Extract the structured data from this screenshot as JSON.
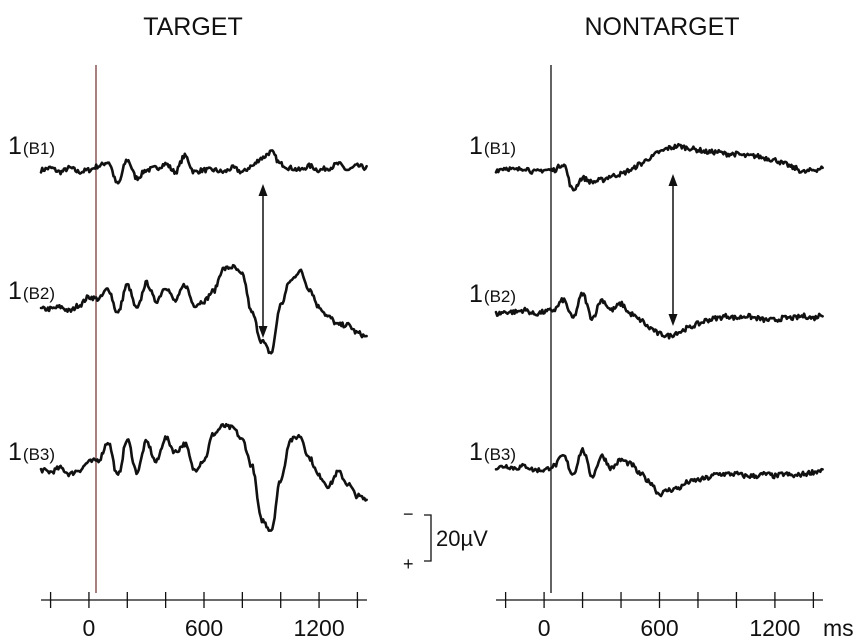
{
  "colors": {
    "trace": "#111111",
    "onset_target": "#7a3b3b",
    "onset_nontarget": "#111111"
  },
  "chart_data": [
    {
      "type": "line",
      "title": "TARGET",
      "x_unit": "",
      "xlim": [
        -250,
        1450
      ],
      "x_ticks": [
        -200,
        0,
        200,
        400,
        600,
        800,
        1000,
        1200,
        1400
      ],
      "x_tick_labels": [
        {
          "value": 0,
          "label": "0"
        },
        {
          "value": 600,
          "label": "600"
        },
        {
          "value": 1200,
          "label": "1200"
        }
      ],
      "series": [
        {
          "label_num": "1",
          "label_sub": "(B1)",
          "x": [
            -250,
            -200,
            -150,
            -100,
            -50,
            0,
            50,
            100,
            150,
            200,
            250,
            300,
            350,
            400,
            450,
            500,
            550,
            600,
            650,
            700,
            750,
            800,
            850,
            900,
            950,
            1000,
            1050,
            1100,
            1150,
            1200,
            1250,
            1300,
            1350,
            1400,
            1450
          ],
          "values": [
            0,
            1,
            -1,
            1,
            -1,
            0,
            2,
            4,
            -7,
            5,
            -4,
            0,
            1,
            3,
            -1,
            7,
            -1,
            0,
            0,
            -1,
            1,
            -1,
            2,
            6,
            9,
            3,
            1,
            0,
            2,
            0,
            1,
            3,
            0,
            2,
            1
          ]
        },
        {
          "label_num": "1",
          "label_sub": "(B2)",
          "x": [
            -250,
            -200,
            -150,
            -100,
            -50,
            0,
            50,
            100,
            150,
            200,
            250,
            300,
            350,
            400,
            450,
            500,
            550,
            600,
            650,
            700,
            750,
            800,
            850,
            900,
            950,
            1000,
            1050,
            1100,
            1150,
            1200,
            1250,
            1300,
            1350,
            1400,
            1450
          ],
          "values": [
            -2,
            -2,
            -1,
            -3,
            0,
            4,
            3,
            8,
            -4,
            10,
            -2,
            11,
            2,
            9,
            2,
            10,
            0,
            2,
            7,
            18,
            19,
            15,
            -4,
            -18,
            -24,
            0,
            12,
            17,
            8,
            -1,
            -6,
            -10,
            -10,
            -14,
            -16
          ]
        },
        {
          "label_num": "1",
          "label_sub": "(B3)",
          "x": [
            -250,
            -200,
            -150,
            -100,
            -50,
            0,
            50,
            100,
            150,
            200,
            250,
            300,
            350,
            400,
            450,
            500,
            550,
            600,
            650,
            700,
            750,
            800,
            850,
            900,
            950,
            1000,
            1050,
            1100,
            1150,
            1200,
            1250,
            1300,
            1350,
            1400,
            1450
          ],
          "values": [
            -1,
            -2,
            0,
            -3,
            -1,
            3,
            4,
            13,
            -4,
            14,
            -2,
            13,
            3,
            15,
            8,
            12,
            -1,
            4,
            17,
            21,
            20,
            14,
            1,
            -26,
            -31,
            -6,
            14,
            16,
            5,
            -4,
            -9,
            -2,
            -8,
            -14,
            -16
          ]
        }
      ]
    },
    {
      "type": "line",
      "title": "NONTARGET",
      "x_unit": "ms",
      "xlim": [
        -250,
        1450
      ],
      "x_ticks": [
        -200,
        0,
        200,
        400,
        600,
        800,
        1000,
        1200,
        1400
      ],
      "x_tick_labels": [
        {
          "value": 0,
          "label": "0"
        },
        {
          "value": 600,
          "label": "600"
        },
        {
          "value": 1200,
          "label": "1200"
        }
      ],
      "series": [
        {
          "label_num": "1",
          "label_sub": "(B1)",
          "x": [
            -250,
            -200,
            -150,
            -100,
            -50,
            0,
            50,
            100,
            150,
            200,
            250,
            300,
            350,
            400,
            450,
            500,
            550,
            600,
            650,
            700,
            750,
            800,
            850,
            900,
            950,
            1000,
            1050,
            1100,
            1150,
            1200,
            1250,
            1300,
            1350,
            1400,
            1450
          ],
          "values": [
            0,
            1,
            0,
            1,
            -1,
            0,
            0,
            3,
            -10,
            -4,
            -6,
            -5,
            -3,
            -2,
            0,
            3,
            6,
            9,
            11,
            12,
            11,
            10,
            9,
            9,
            8,
            8,
            7,
            7,
            6,
            5,
            3,
            1,
            -1,
            0,
            1
          ]
        },
        {
          "label_num": "1",
          "label_sub": "(B2)",
          "x": [
            -250,
            -200,
            -150,
            -100,
            -50,
            0,
            50,
            100,
            150,
            200,
            250,
            300,
            350,
            400,
            450,
            500,
            550,
            600,
            650,
            700,
            750,
            800,
            850,
            900,
            950,
            1000,
            1050,
            1100,
            1150,
            1200,
            1250,
            1300,
            1350,
            1400,
            1450
          ],
          "values": [
            -1,
            0,
            0,
            1,
            -1,
            0,
            1,
            6,
            -3,
            9,
            -3,
            6,
            1,
            4,
            -1,
            -4,
            -8,
            -11,
            -12,
            -10,
            -8,
            -6,
            -4,
            -3,
            -2,
            -3,
            -2,
            -3,
            -4,
            -4,
            -3,
            -3,
            -2,
            -3,
            -1
          ]
        },
        {
          "label_num": "1",
          "label_sub": "(B3)",
          "x": [
            -250,
            -200,
            -150,
            -100,
            -50,
            0,
            50,
            100,
            150,
            200,
            250,
            300,
            350,
            400,
            450,
            500,
            550,
            600,
            650,
            700,
            750,
            800,
            850,
            900,
            950,
            1000,
            1050,
            1100,
            1150,
            1200,
            1250,
            1300,
            1350,
            1400,
            1450
          ],
          "values": [
            1,
            2,
            1,
            2,
            0,
            0,
            2,
            7,
            -2,
            10,
            -3,
            7,
            1,
            5,
            3,
            -2,
            -6,
            -12,
            -10,
            -9,
            -6,
            -5,
            -4,
            -2,
            -2,
            -2,
            -3,
            -3,
            -2,
            -3,
            -2,
            -3,
            -2,
            -1,
            0
          ]
        }
      ]
    }
  ],
  "scale_bar": {
    "label": "20µV",
    "minus": "−",
    "plus": "+"
  }
}
